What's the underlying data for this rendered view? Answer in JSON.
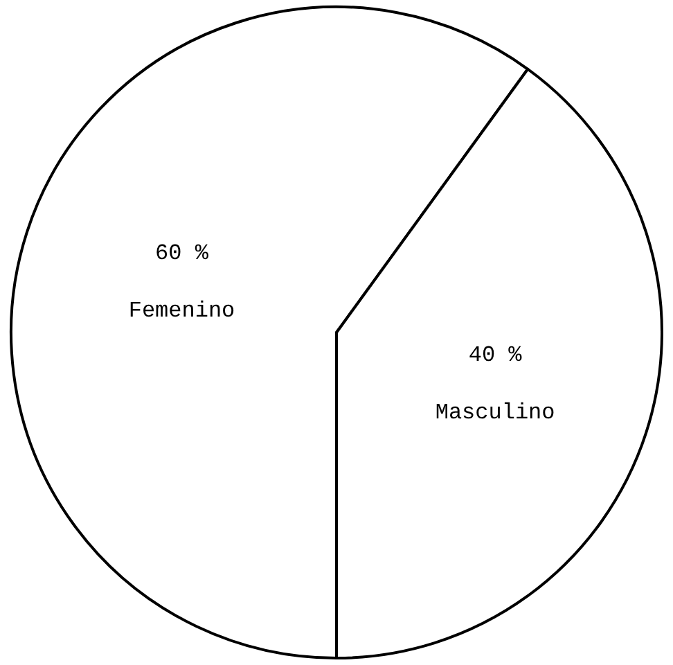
{
  "chart_data": {
    "type": "pie",
    "categories": [
      "Femenino",
      "Masculino"
    ],
    "values": [
      60,
      40
    ],
    "value_labels": [
      "60 %",
      "40 %"
    ],
    "colors": [
      "#ffffff",
      "#ffffff"
    ],
    "legend": false
  }
}
